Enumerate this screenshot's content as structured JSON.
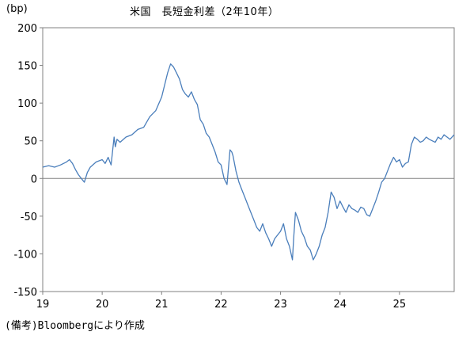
{
  "chart_data": {
    "type": "line",
    "title": "米国　長短金利差（2年10年）",
    "unit_label": "(bp)",
    "xlabel": "",
    "ylabel": "",
    "ylim": [
      -150,
      200
    ],
    "xlim": [
      2019.0,
      2025.92
    ],
    "y_ticks": [
      "200",
      "150",
      "100",
      "50",
      "0",
      "-50",
      "-100",
      "-150"
    ],
    "x_ticks": [
      "19",
      "20",
      "21",
      "22",
      "23",
      "24",
      "25"
    ],
    "grid": false,
    "zero_line": true,
    "line_color": "#4a7ebb",
    "series": [
      {
        "name": "",
        "x": [
          2019.0,
          2019.1,
          2019.2,
          2019.3,
          2019.4,
          2019.45,
          2019.5,
          2019.55,
          2019.6,
          2019.65,
          2019.7,
          2019.75,
          2019.8,
          2019.9,
          2020.0,
          2020.05,
          2020.1,
          2020.15,
          2020.2,
          2020.22,
          2020.25,
          2020.3,
          2020.4,
          2020.5,
          2020.6,
          2020.7,
          2020.8,
          2020.9,
          2021.0,
          2021.1,
          2021.15,
          2021.2,
          2021.25,
          2021.3,
          2021.35,
          2021.4,
          2021.45,
          2021.5,
          2021.55,
          2021.6,
          2021.65,
          2021.7,
          2021.75,
          2021.8,
          2021.85,
          2021.9,
          2021.95,
          2022.0,
          2022.05,
          2022.1,
          2022.15,
          2022.18,
          2022.2,
          2022.25,
          2022.3,
          2022.35,
          2022.4,
          2022.45,
          2022.5,
          2022.55,
          2022.6,
          2022.65,
          2022.7,
          2022.75,
          2022.8,
          2022.85,
          2022.9,
          2022.95,
          2023.0,
          2023.05,
          2023.1,
          2023.15,
          2023.2,
          2023.22,
          2023.25,
          2023.3,
          2023.35,
          2023.4,
          2023.45,
          2023.5,
          2023.55,
          2023.6,
          2023.65,
          2023.7,
          2023.75,
          2023.8,
          2023.85,
          2023.9,
          2023.95,
          2024.0,
          2024.05,
          2024.1,
          2024.15,
          2024.2,
          2024.25,
          2024.3,
          2024.35,
          2024.4,
          2024.45,
          2024.5,
          2024.55,
          2024.6,
          2024.65,
          2024.7,
          2024.75,
          2024.8,
          2024.85,
          2024.9,
          2024.95,
          2025.0,
          2025.05,
          2025.1,
          2025.15,
          2025.2,
          2025.25,
          2025.3,
          2025.35,
          2025.4,
          2025.45,
          2025.5,
          2025.55,
          2025.6,
          2025.65,
          2025.7,
          2025.75,
          2025.8,
          2025.85,
          2025.92
        ],
        "values": [
          15,
          17,
          15,
          18,
          22,
          25,
          20,
          12,
          5,
          0,
          -5,
          8,
          15,
          22,
          25,
          20,
          28,
          18,
          55,
          42,
          52,
          48,
          55,
          58,
          65,
          68,
          82,
          90,
          108,
          140,
          152,
          148,
          140,
          132,
          118,
          112,
          108,
          115,
          105,
          98,
          78,
          72,
          60,
          55,
          45,
          35,
          22,
          18,
          0,
          -8,
          38,
          35,
          30,
          10,
          -5,
          -15,
          -25,
          -35,
          -45,
          -55,
          -65,
          -70,
          -60,
          -72,
          -80,
          -90,
          -80,
          -75,
          -70,
          -60,
          -80,
          -90,
          -108,
          -80,
          -45,
          -55,
          -70,
          -78,
          -90,
          -95,
          -108,
          -100,
          -90,
          -75,
          -65,
          -45,
          -18,
          -25,
          -40,
          -30,
          -38,
          -45,
          -35,
          -40,
          -42,
          -45,
          -38,
          -40,
          -48,
          -50,
          -40,
          -30,
          -18,
          -5,
          0,
          10,
          20,
          28,
          22,
          25,
          15,
          20,
          22,
          45,
          55,
          52,
          48,
          50,
          55,
          52,
          50,
          48,
          55,
          52,
          58,
          55,
          52,
          58
        ]
      }
    ]
  },
  "footer": {
    "source_note": "(備考)Bloombergにより作成"
  }
}
